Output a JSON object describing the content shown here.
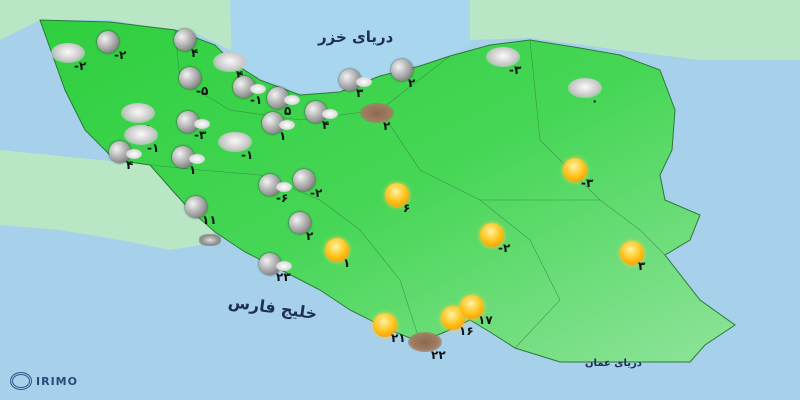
{
  "seas": {
    "caspian": "دریای خزر",
    "persian_gulf": "خلیج فارس",
    "oman_sea": "دریای عمان"
  },
  "logo": {
    "text": "IRIMO"
  },
  "colors": {
    "sea": "#a7d0ea",
    "land": "#3fcf4f",
    "neighbor": "#b9e6c4"
  },
  "stations": [
    {
      "icon": "cloud",
      "temp": "-۲"
    },
    {
      "icon": "moon",
      "temp": "-۲"
    },
    {
      "icon": "moon",
      "temp": "۴"
    },
    {
      "icon": "cloud",
      "temp": "۴"
    },
    {
      "icon": "moon",
      "temp": "-۵"
    },
    {
      "icon": "moon-cloud",
      "temp": "-۱"
    },
    {
      "icon": "moon-cloud",
      "temp": "۵"
    },
    {
      "icon": "moon-cloud",
      "temp": "۴"
    },
    {
      "icon": "moon-cloud",
      "temp": "۱"
    },
    {
      "icon": "moon-cloud",
      "temp": "۳"
    },
    {
      "icon": "moon",
      "temp": "۲"
    },
    {
      "icon": "dust",
      "temp": "۲"
    },
    {
      "icon": "cloud",
      "temp": "۰"
    },
    {
      "icon": "moon-cloud",
      "temp": "-۳"
    },
    {
      "icon": "cloud",
      "temp": "-۱"
    },
    {
      "icon": "cloud",
      "temp": "-۱"
    },
    {
      "icon": "moon-cloud",
      "temp": "۴"
    },
    {
      "icon": "moon-cloud",
      "temp": "۱"
    },
    {
      "icon": "moon-cloud",
      "temp": "-۶"
    },
    {
      "icon": "moon",
      "temp": "-۲"
    },
    {
      "icon": "sun",
      "temp": "۶"
    },
    {
      "icon": "moon",
      "temp": "۱۱"
    },
    {
      "icon": "moon",
      "temp": "۲"
    },
    {
      "icon": "sun",
      "temp": "۱"
    },
    {
      "icon": "storm",
      "temp": ""
    },
    {
      "icon": "moon-cloud",
      "temp": "۲۳"
    },
    {
      "icon": "sun",
      "temp": "-۲"
    },
    {
      "icon": "sun",
      "temp": "-۳"
    },
    {
      "icon": "cloud",
      "temp": "-۳"
    },
    {
      "icon": "cloud",
      "temp": "۰"
    },
    {
      "icon": "sun",
      "temp": "۳"
    },
    {
      "icon": "sun",
      "temp": "۲۱"
    },
    {
      "icon": "dust",
      "temp": "۲۲"
    },
    {
      "icon": "sun",
      "temp": "۱۶"
    },
    {
      "icon": "sun",
      "temp": "۱۷"
    }
  ]
}
